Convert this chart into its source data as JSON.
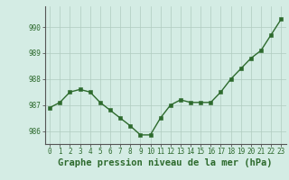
{
  "x": [
    0,
    1,
    2,
    3,
    4,
    5,
    6,
    7,
    8,
    9,
    10,
    11,
    12,
    13,
    14,
    15,
    16,
    17,
    18,
    19,
    20,
    21,
    22,
    23
  ],
  "y": [
    986.9,
    987.1,
    987.5,
    987.6,
    987.5,
    987.1,
    986.8,
    986.5,
    986.2,
    985.85,
    985.85,
    986.5,
    987.0,
    987.2,
    987.1,
    987.1,
    987.1,
    987.5,
    988.0,
    988.4,
    988.8,
    989.1,
    989.7,
    990.3
  ],
  "line_color": "#2d6a2d",
  "marker_color": "#2d6a2d",
  "bg_color": "#d4ece4",
  "grid_color": "#b0ccbf",
  "xlabel": "Graphe pression niveau de la mer (hPa)",
  "xlabel_fontsize": 7.5,
  "ylim_min": 985.5,
  "ylim_max": 990.8,
  "yticks": [
    986,
    987,
    988,
    989,
    990
  ],
  "xticks": [
    0,
    1,
    2,
    3,
    4,
    5,
    6,
    7,
    8,
    9,
    10,
    11,
    12,
    13,
    14,
    15,
    16,
    17,
    18,
    19,
    20,
    21,
    22,
    23
  ],
  "tick_fontsize": 5.5,
  "line_width": 1.0,
  "marker_size": 2.5,
  "spine_color": "#555555"
}
